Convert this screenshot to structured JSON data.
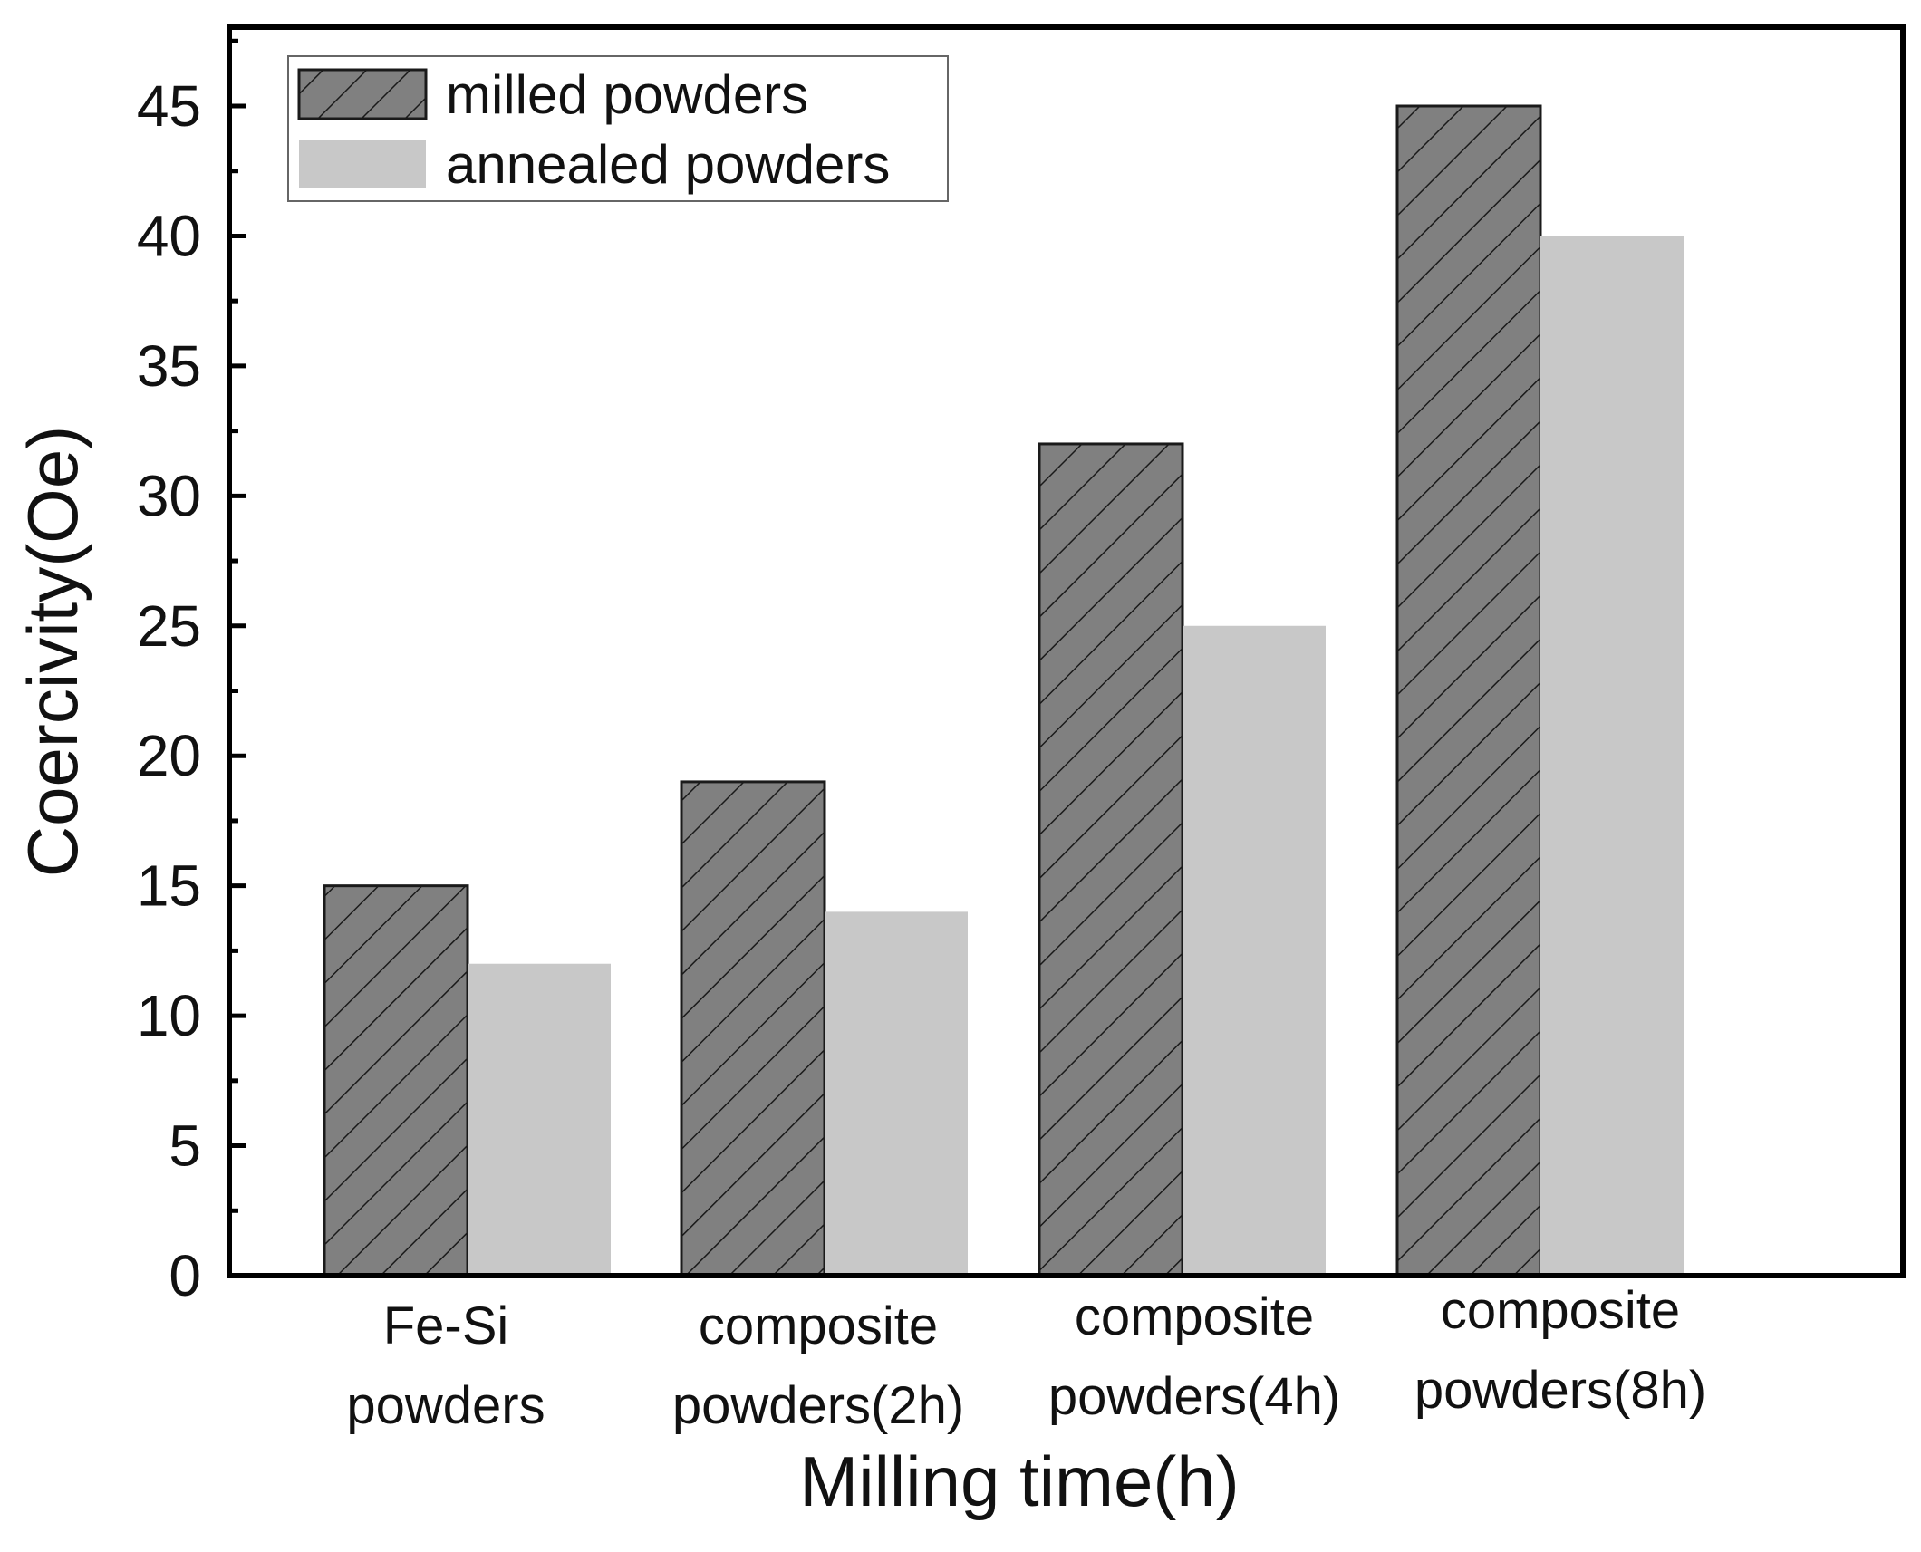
{
  "chart_data": {
    "type": "bar",
    "title": "",
    "xlabel": "Milling time(h)",
    "ylabel": "Coercivity(Oe)",
    "ylim": [
      0,
      48
    ],
    "yticks": [
      0,
      5,
      10,
      15,
      20,
      25,
      30,
      35,
      40,
      45
    ],
    "categories": [
      [
        "Fe-Si",
        "powders"
      ],
      [
        "composite",
        "powders(2h)"
      ],
      [
        "composite",
        "powders(4h)"
      ],
      [
        "composite",
        "powders(8h)"
      ]
    ],
    "series": [
      {
        "name": "milled powders",
        "values": [
          15,
          19,
          32,
          45
        ],
        "color": "#808080",
        "pattern": "diagonal-hatch"
      },
      {
        "name": "annealed powders",
        "values": [
          12,
          14,
          25,
          40
        ],
        "color": "#c8c8c8",
        "pattern": "solid"
      }
    ],
    "legend_position": "top-left",
    "grid": false
  }
}
